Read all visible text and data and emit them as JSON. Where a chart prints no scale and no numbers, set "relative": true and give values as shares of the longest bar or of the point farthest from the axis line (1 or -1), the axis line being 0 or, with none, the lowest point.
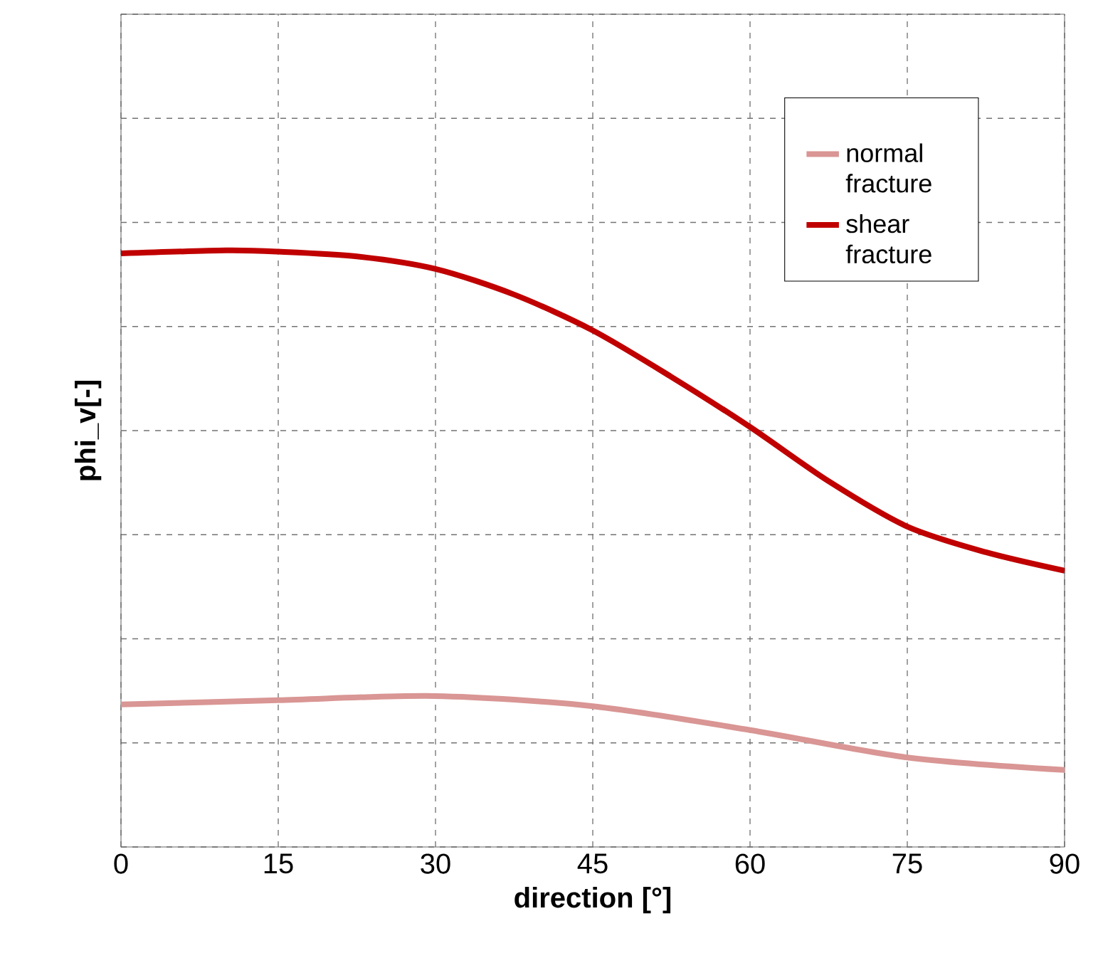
{
  "chart_data": {
    "type": "line",
    "relative": true,
    "xlabel": "direction [°]",
    "ylabel": "phi_v[-]",
    "xlim": [
      0,
      90
    ],
    "xticks": [
      0,
      15,
      30,
      45,
      60,
      75,
      90
    ],
    "grid": true,
    "legend": "top right",
    "series": [
      {
        "name": "normal fracture",
        "color": "#d99694",
        "x": [
          0,
          15,
          30,
          45,
          60,
          75,
          90
        ],
        "values": [
          0.239,
          0.246,
          0.253,
          0.236,
          0.196,
          0.15,
          0.129
        ]
      },
      {
        "name": "shear fracture",
        "color": "#c00000",
        "x": [
          0,
          10,
          15,
          22.5,
          30,
          37.5,
          45,
          52.5,
          60,
          67.5,
          75,
          82.5,
          90
        ],
        "values": [
          0.995,
          1.0,
          0.998,
          0.99,
          0.969,
          0.926,
          0.866,
          0.788,
          0.704,
          0.613,
          0.537,
          0.494,
          0.463
        ]
      }
    ]
  }
}
